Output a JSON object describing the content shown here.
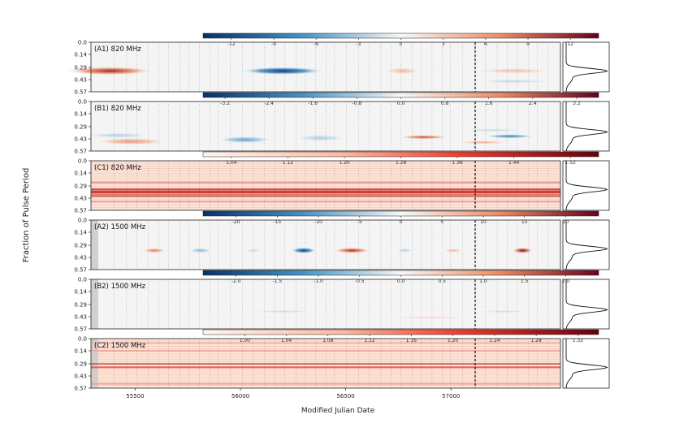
{
  "chart_data": {
    "type": "heatmap",
    "ylabel": "Fraction of Pulse Period",
    "xlabel": "Modified Julian Date",
    "x_ticks": [
      55500,
      56000,
      56500,
      57000
    ],
    "xlim": [
      55290,
      57520
    ],
    "y_ticks": [
      "0.0",
      "0.14",
      "0.29",
      "0.43",
      "0.57"
    ],
    "ylim": [
      0.0,
      0.57
    ],
    "event_line_mjd": 57115,
    "colors": {
      "neg_dark": "#08306b",
      "neg_mid": "#4292c6",
      "neutral": "#f7f7f7",
      "pos_mid": "#ef8a62",
      "pos_dark": "#67001f"
    },
    "panels": [
      {
        "id": "A1",
        "label": "(A1) 820 MHz",
        "colorbar": {
          "min": -14,
          "max": 14,
          "ticks": [
            "-12",
            "-9",
            "-6",
            "-3",
            "0",
            "3",
            "6",
            "9",
            "12"
          ],
          "tick_values": [
            -12,
            -9,
            -6,
            -3,
            0,
            3,
            6,
            9,
            12
          ],
          "style": "diverging"
        },
        "blobs": [
          {
            "mjd": 55380,
            "phase": 0.33,
            "dmjd": 210,
            "dphase": 0.05,
            "v": 0.85
          },
          {
            "mjd": 56200,
            "phase": 0.33,
            "dmjd": 200,
            "dphase": 0.045,
            "v": -0.95
          },
          {
            "mjd": 56770,
            "phase": 0.33,
            "dmjd": 80,
            "dphase": 0.04,
            "v": 0.3
          },
          {
            "mjd": 57300,
            "phase": 0.33,
            "dmjd": 180,
            "dphase": 0.035,
            "v": 0.25
          },
          {
            "mjd": 57300,
            "phase": 0.45,
            "dmjd": 180,
            "dphase": 0.025,
            "v": -0.15
          }
        ],
        "has_gray_strip": false
      },
      {
        "id": "B1",
        "label": "(B1) 820 MHz",
        "colorbar": {
          "min": -3.6,
          "max": 3.6,
          "ticks": [
            "-3.2",
            "-2.4",
            "-1.6",
            "-0.8",
            "0.0",
            "0.8",
            "1.6",
            "2.4",
            "3.2"
          ],
          "tick_values": [
            -3.2,
            -2.4,
            -1.6,
            -0.8,
            0.0,
            0.8,
            1.6,
            2.4,
            3.2
          ],
          "style": "diverging"
        },
        "blobs": [
          {
            "mjd": 55480,
            "phase": 0.46,
            "dmjd": 170,
            "dphase": 0.04,
            "v": 0.45
          },
          {
            "mjd": 55420,
            "phase": 0.39,
            "dmjd": 160,
            "dphase": 0.03,
            "v": -0.2
          },
          {
            "mjd": 56020,
            "phase": 0.44,
            "dmjd": 130,
            "dphase": 0.04,
            "v": -0.4
          },
          {
            "mjd": 56380,
            "phase": 0.42,
            "dmjd": 120,
            "dphase": 0.04,
            "v": -0.2
          },
          {
            "mjd": 56870,
            "phase": 0.41,
            "dmjd": 120,
            "dphase": 0.025,
            "v": 0.7
          },
          {
            "mjd": 57150,
            "phase": 0.47,
            "dmjd": 120,
            "dphase": 0.02,
            "v": 0.35
          },
          {
            "mjd": 57280,
            "phase": 0.4,
            "dmjd": 120,
            "dphase": 0.025,
            "v": -0.55
          },
          {
            "mjd": 57200,
            "phase": 0.33,
            "dmjd": 150,
            "dphase": 0.02,
            "v": -0.15
          }
        ],
        "has_gray_strip": false
      },
      {
        "id": "C1",
        "label": "(C1) 820 MHz",
        "colorbar": {
          "min": 1.0,
          "max": 1.56,
          "ticks": [
            "1.04",
            "1.12",
            "1.20",
            "1.28",
            "1.36",
            "1.44",
            "1.52"
          ],
          "tick_values": [
            1.04,
            1.12,
            1.2,
            1.28,
            1.36,
            1.44,
            1.52
          ],
          "style": "sequential"
        },
        "blobs": [],
        "has_gray_strip": false
      },
      {
        "id": "A2",
        "label": "(A2) 1500 MHz",
        "colorbar": {
          "min": -24,
          "max": 24,
          "ticks": [
            "-20",
            "-15",
            "-10",
            "-5",
            "0",
            "5",
            "10",
            "15",
            "20"
          ],
          "tick_values": [
            -20,
            -15,
            -10,
            -5,
            0,
            5,
            10,
            15,
            20
          ],
          "style": "diverging"
        },
        "blobs": [
          {
            "mjd": 55590,
            "phase": 0.35,
            "dmjd": 55,
            "dphase": 0.03,
            "v": 0.55
          },
          {
            "mjd": 55810,
            "phase": 0.35,
            "dmjd": 55,
            "dphase": 0.03,
            "v": -0.3
          },
          {
            "mjd": 56060,
            "phase": 0.35,
            "dmjd": 35,
            "dphase": 0.025,
            "v": -0.15
          },
          {
            "mjd": 56300,
            "phase": 0.35,
            "dmjd": 60,
            "dphase": 0.035,
            "v": -0.9
          },
          {
            "mjd": 56530,
            "phase": 0.35,
            "dmjd": 90,
            "dphase": 0.035,
            "v": 0.8
          },
          {
            "mjd": 56780,
            "phase": 0.35,
            "dmjd": 40,
            "dphase": 0.025,
            "v": -0.2
          },
          {
            "mjd": 57010,
            "phase": 0.35,
            "dmjd": 45,
            "dphase": 0.025,
            "v": 0.3
          },
          {
            "mjd": 57340,
            "phase": 0.35,
            "dmjd": 50,
            "dphase": 0.035,
            "v": 0.95
          }
        ],
        "has_gray_strip": true
      },
      {
        "id": "B2",
        "label": "(B2) 1500 MHz",
        "colorbar": {
          "min": -2.4,
          "max": 2.4,
          "ticks": [
            "-2.0",
            "-1.5",
            "-1.0",
            "-0.5",
            "0.0",
            "0.5",
            "1.0",
            "1.5",
            "2.0"
          ],
          "tick_values": [
            -2.0,
            -1.5,
            -1.0,
            -0.5,
            0.0,
            0.5,
            1.0,
            1.5,
            2.0
          ],
          "style": "diverging"
        },
        "blobs": [
          {
            "mjd": 56200,
            "phase": 0.37,
            "dmjd": 150,
            "dphase": 0.02,
            "v": -0.12
          },
          {
            "mjd": 56900,
            "phase": 0.44,
            "dmjd": 200,
            "dphase": 0.02,
            "v": 0.12
          },
          {
            "mjd": 57250,
            "phase": 0.37,
            "dmjd": 120,
            "dphase": 0.02,
            "v": -0.12
          }
        ],
        "has_gray_strip": true
      },
      {
        "id": "C2",
        "label": "(C2) 1500 MHz",
        "colorbar": {
          "min": 0.96,
          "max": 1.34,
          "ticks": [
            "1.00",
            "1.04",
            "1.08",
            "1.12",
            "1.16",
            "1.20",
            "1.24",
            "1.28",
            "1.32"
          ],
          "tick_values": [
            1.0,
            1.04,
            1.08,
            1.12,
            1.16,
            1.2,
            1.24,
            1.28,
            1.32
          ],
          "style": "sequential"
        },
        "blobs": [],
        "has_gray_strip": true
      }
    ]
  }
}
